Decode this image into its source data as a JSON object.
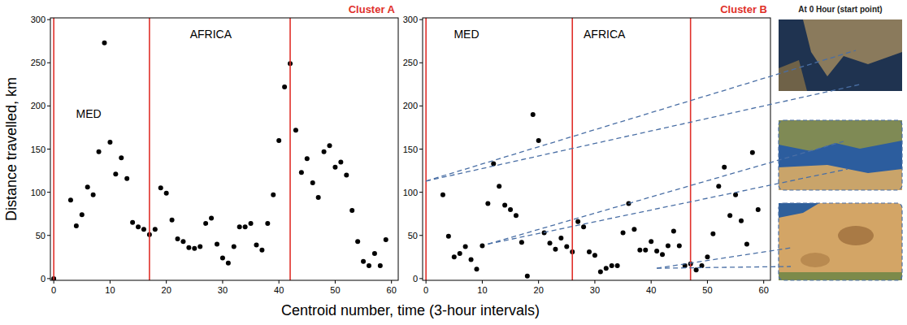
{
  "chart_data": [
    {
      "type": "scatter",
      "title": "Cluster A",
      "x_label": "Centroid number, time (3-hour intervals)",
      "y_label": "Distance travelled, km",
      "color": "#000000",
      "marker": "circle",
      "grid": false,
      "xlim": [
        -0.6,
        61.2
      ],
      "ylim": [
        -2,
        302
      ],
      "xticks": [
        0,
        10,
        20,
        30,
        40,
        50,
        60
      ],
      "yticks": [
        0,
        50,
        100,
        150,
        200,
        250,
        300
      ],
      "vlines": [
        0,
        17,
        42
      ],
      "annotations": [
        {
          "text": "MED",
          "x": 6.2,
          "y": 191
        },
        {
          "text": "AFRICA",
          "x": 27.9,
          "y": 283
        }
      ],
      "x": [
        0,
        3,
        4,
        5,
        6,
        7,
        8,
        9,
        10,
        11,
        12,
        13,
        14,
        15,
        16,
        17,
        18,
        19,
        20,
        21,
        22,
        23,
        24,
        25,
        26,
        27,
        28,
        29,
        30,
        31,
        32,
        33,
        34,
        35,
        36,
        37,
        38,
        39,
        40,
        41,
        42,
        43,
        44,
        45,
        46,
        47,
        48,
        49,
        50,
        51,
        52,
        53,
        54,
        55,
        56,
        57,
        58,
        59
      ],
      "values": [
        0,
        91,
        61,
        74,
        106,
        97,
        147,
        273,
        158,
        121,
        140,
        116,
        65,
        60,
        57,
        51,
        57,
        105,
        99,
        68,
        46,
        43,
        36,
        35,
        37,
        64,
        70,
        40,
        24,
        18,
        37,
        60,
        60,
        64,
        39,
        33,
        64,
        97,
        160,
        222,
        249,
        172,
        123,
        139,
        111,
        94,
        147,
        154,
        129,
        135,
        120,
        79,
        43,
        20,
        15,
        29,
        15,
        45
      ]
    },
    {
      "type": "scatter",
      "title": "Cluster B",
      "color": "#000000",
      "marker": "circle",
      "grid": false,
      "xlim": [
        -0.6,
        61.2
      ],
      "ylim": [
        -2,
        302
      ],
      "xticks": [
        0,
        10,
        20,
        30,
        40,
        50,
        60
      ],
      "yticks": [
        0,
        50,
        100,
        150,
        200,
        250,
        300
      ],
      "vlines": [
        0,
        26,
        47
      ],
      "annotations": [
        {
          "text": "MED",
          "x": 7.2,
          "y": 283
        },
        {
          "text": "AFRICA",
          "x": 31.7,
          "y": 283
        }
      ],
      "links": [
        {
          "x": 0,
          "y": 113
        },
        {
          "x": 11,
          "y": 40
        },
        {
          "x": 41,
          "y": 12
        }
      ],
      "x": [
        3,
        4,
        5,
        6,
        7,
        8,
        9,
        10,
        11,
        12,
        13,
        14,
        15,
        16,
        17,
        18,
        19,
        20,
        21,
        22,
        23,
        24,
        25,
        26,
        27,
        28,
        29,
        30,
        31,
        32,
        33,
        34,
        35,
        36,
        37,
        38,
        39,
        40,
        41,
        42,
        43,
        44,
        45,
        46,
        47,
        48,
        49,
        50,
        51,
        52,
        53,
        54,
        55,
        56,
        57,
        58,
        59
      ],
      "values": [
        97,
        49,
        25,
        29,
        37,
        22,
        11,
        38,
        87,
        133,
        107,
        85,
        80,
        73,
        42,
        3,
        190,
        160,
        53,
        41,
        34,
        47,
        37,
        31,
        66,
        60,
        31,
        27,
        8,
        12,
        15,
        15,
        53,
        87,
        57,
        33,
        33,
        43,
        32,
        28,
        38,
        55,
        38,
        15,
        17,
        10,
        15,
        25,
        52,
        107,
        129,
        73,
        97,
        67,
        40,
        146,
        80
      ]
    }
  ],
  "image_caption": "At 0 Hour (start point)"
}
